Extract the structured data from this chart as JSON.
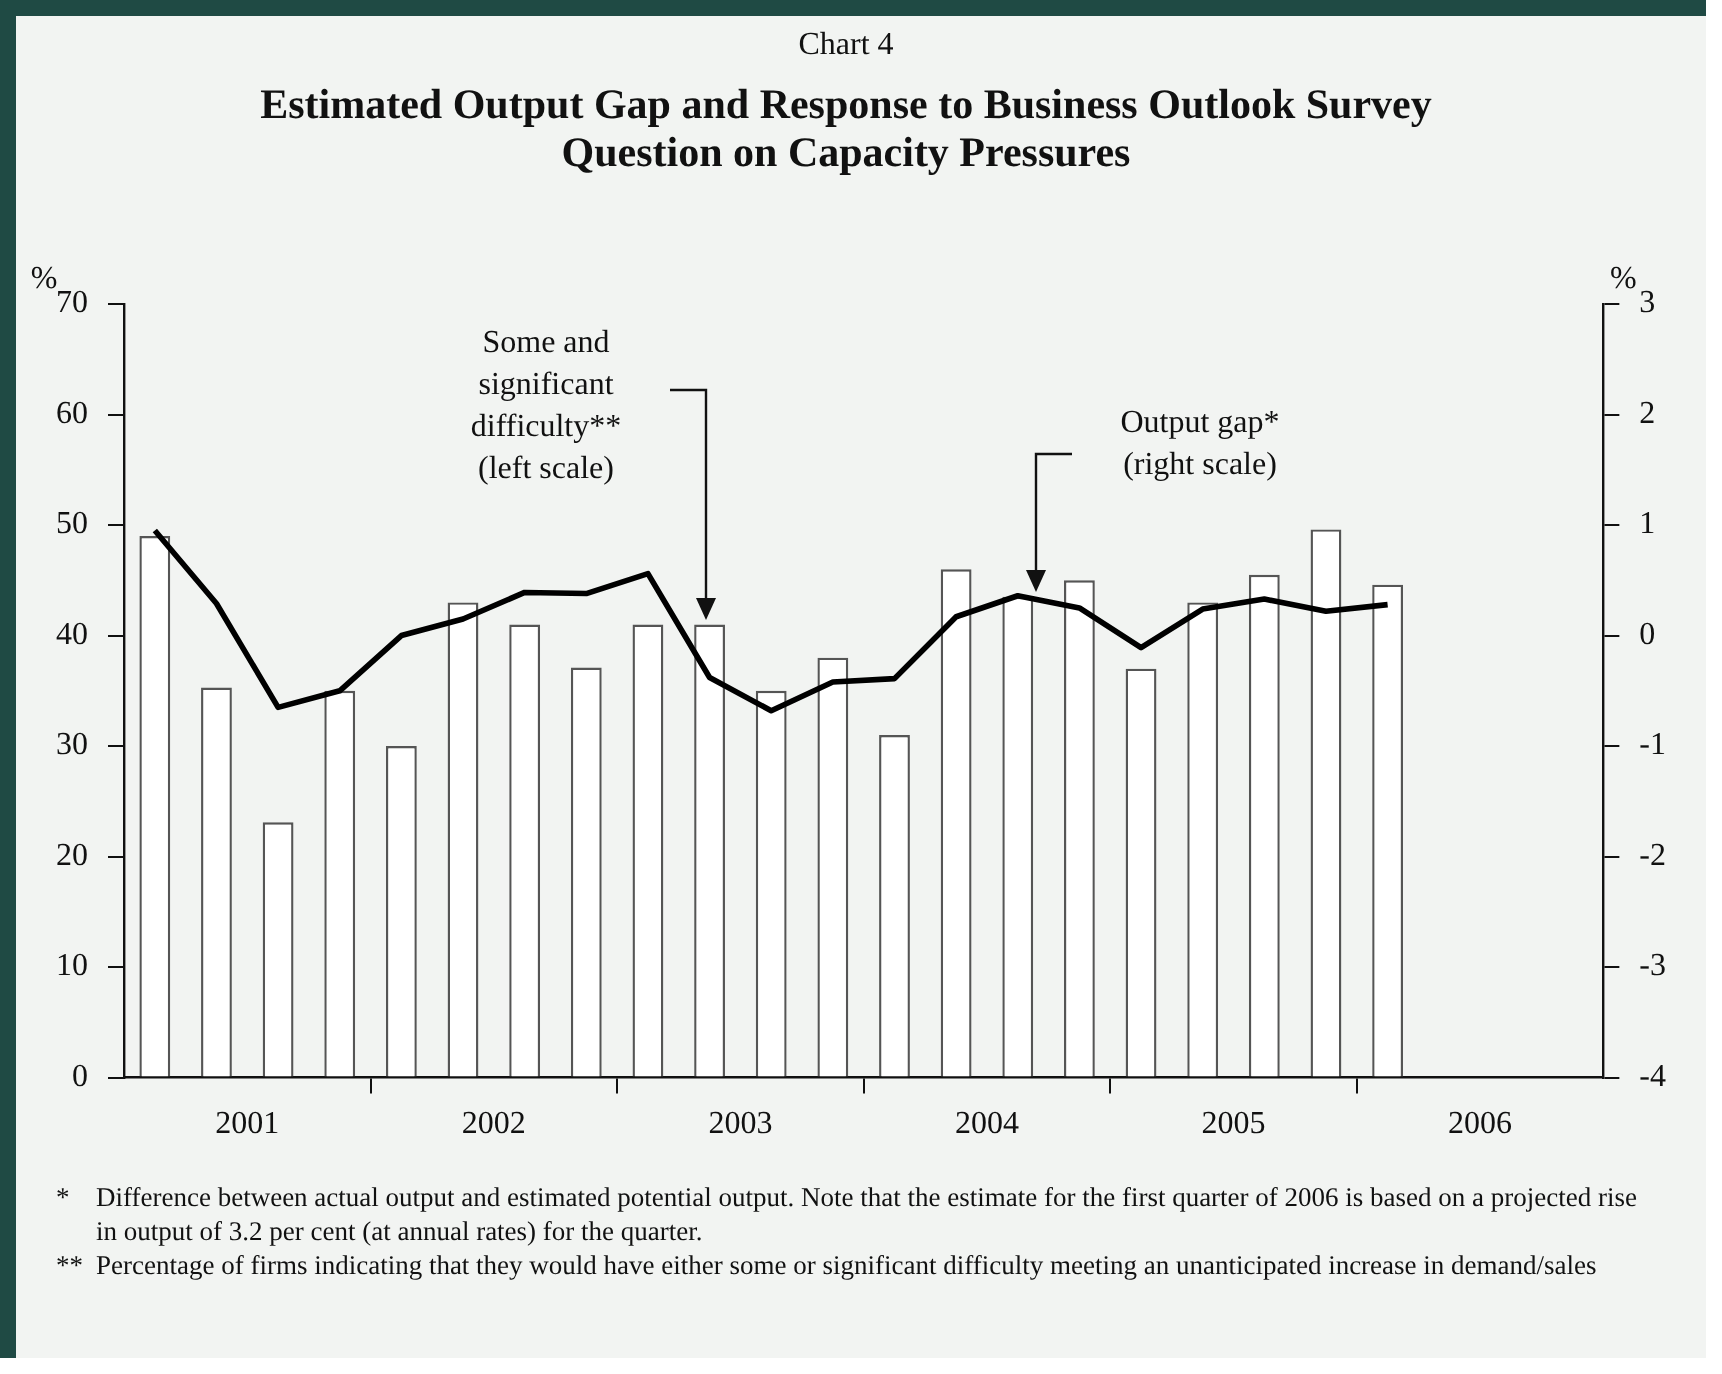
{
  "chart_data": {
    "type": "bar",
    "subtitle": "Chart 4",
    "title": "Estimated Output Gap and Response to Business Outlook Survey Question on Capacity Pressures",
    "ylabel": "%",
    "y2label": "%",
    "x": [
      2001.125,
      2001.375,
      2001.625,
      2001.875,
      2002.125,
      2002.375,
      2002.625,
      2002.875,
      2003.125,
      2003.375,
      2003.625,
      2003.875,
      2004.125,
      2004.375,
      2004.625,
      2004.875,
      2005.125,
      2005.375,
      2005.625,
      2005.875,
      2006.125
    ],
    "xlim": [
      2001,
      2007
    ],
    "xticks": [
      {
        "value": 2001.5,
        "label": "2001"
      },
      {
        "value": 2002,
        "label": null
      },
      {
        "value": 2002.5,
        "label": "2002"
      },
      {
        "value": 2003,
        "label": null
      },
      {
        "value": 2003.5,
        "label": "2003"
      },
      {
        "value": 2004,
        "label": null
      },
      {
        "value": 2004.5,
        "label": "2004"
      },
      {
        "value": 2005,
        "label": null
      },
      {
        "value": 2005.5,
        "label": "2005"
      },
      {
        "value": 2006,
        "label": null
      },
      {
        "value": 2006.5,
        "label": "2006"
      }
    ],
    "ylim": [
      0,
      70
    ],
    "yticks": [
      0,
      10,
      20,
      30,
      40,
      50,
      60,
      70
    ],
    "y2lim": [
      -4,
      3
    ],
    "y2ticks": [
      -4,
      -3,
      -2,
      -1,
      0,
      1,
      2,
      3
    ],
    "grid": false,
    "legend": false,
    "marker": "none",
    "series": [
      {
        "color": "#ffffff",
        "values": [
          49,
          35.3,
          23.1,
          35,
          30,
          43,
          41,
          37.1,
          41,
          41,
          35,
          38,
          31,
          46,
          43.5,
          45,
          37,
          43,
          45.5,
          49.6,
          44.6
        ]
      },
      {
        "type": "line",
        "axis": "y2",
        "color": "#000000",
        "values": [
          0.95,
          0.29,
          -0.65,
          -0.5,
          0,
          0.15,
          0.39,
          0.38,
          0.56,
          -0.38,
          -0.68,
          -0.42,
          -0.39,
          0.17,
          0.36,
          0.25,
          -0.11,
          0.24,
          0.33,
          0.22,
          0.28
        ]
      }
    ],
    "annotations": [
      "Some and significant difficulty** (left scale)",
      "Output gap* (right scale)",
      "* Difference between actual output and estimated potential output. Note that the estimate for the first quarter of 2006 is based on a projected rise in output of 3.2 per cent (at annual rates) for the quarter.",
      "** Percentage of firms indicating that they would have either some or significant difficulty meeting an unanticipated increase in demand/sales"
    ]
  }
}
